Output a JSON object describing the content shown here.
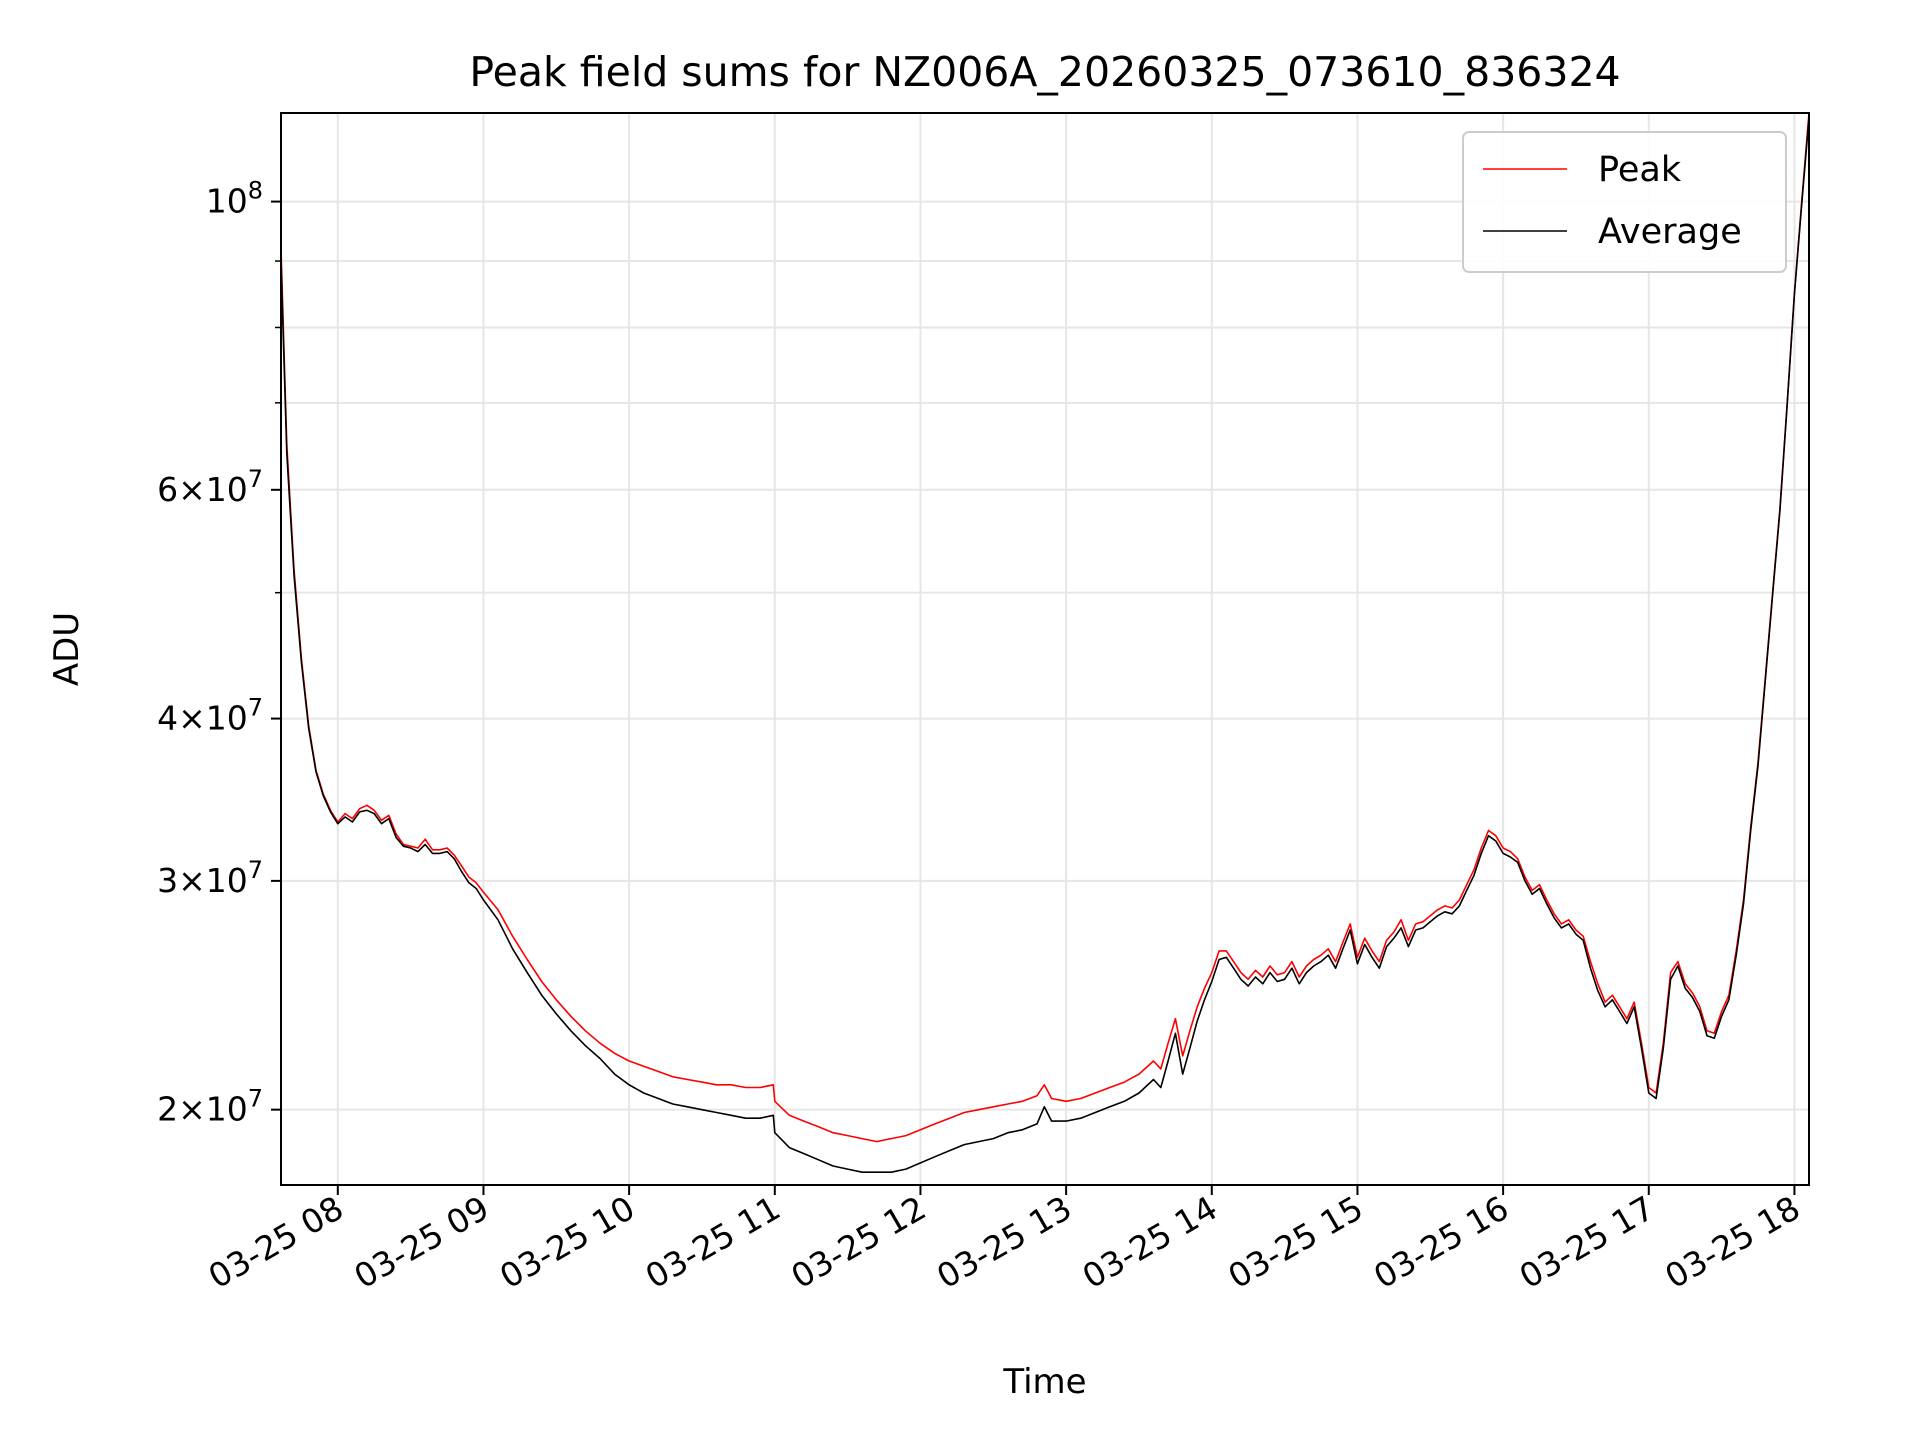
{
  "chart_data": {
    "type": "line",
    "title": "Peak field sums for NZ006A_20260325_073610_836324",
    "xlabel": "Time",
    "ylabel": "ADU",
    "y_scale": "log",
    "ylim": [
      17500000,
      117000000
    ],
    "x_unit": "hours since 2026-03-25 00:00",
    "xlim": [
      7.61,
      18.1
    ],
    "grid": true,
    "legend_position": "top-right",
    "x_ticks": [
      {
        "value": 8,
        "label": "03-25 08"
      },
      {
        "value": 9,
        "label": "03-25 09"
      },
      {
        "value": 10,
        "label": "03-25 10"
      },
      {
        "value": 11,
        "label": "03-25 11"
      },
      {
        "value": 12,
        "label": "03-25 12"
      },
      {
        "value": 13,
        "label": "03-25 13"
      },
      {
        "value": 14,
        "label": "03-25 14"
      },
      {
        "value": 15,
        "label": "03-25 15"
      },
      {
        "value": 16,
        "label": "03-25 16"
      },
      {
        "value": 17,
        "label": "03-25 17"
      },
      {
        "value": 18,
        "label": "03-25 18"
      }
    ],
    "y_major_ticks": [
      {
        "value": 20000000,
        "mantissa": "2",
        "exponent": "7"
      },
      {
        "value": 30000000,
        "mantissa": "3",
        "exponent": "7"
      },
      {
        "value": 40000000,
        "mantissa": "4",
        "exponent": "7"
      },
      {
        "value": 60000000,
        "mantissa": "6",
        "exponent": "7"
      },
      {
        "value": 100000000,
        "mantissa": "",
        "exponent": "8"
      }
    ],
    "y_minor_ticks": [
      50000000,
      70000000,
      80000000,
      90000000
    ],
    "x": [
      7.61,
      7.65,
      7.7,
      7.75,
      7.8,
      7.85,
      7.9,
      7.95,
      8.0,
      8.05,
      8.1,
      8.15,
      8.2,
      8.25,
      8.3,
      8.35,
      8.4,
      8.45,
      8.5,
      8.55,
      8.6,
      8.65,
      8.7,
      8.75,
      8.8,
      8.85,
      8.9,
      8.95,
      9.0,
      9.1,
      9.2,
      9.3,
      9.4,
      9.5,
      9.6,
      9.7,
      9.8,
      9.9,
      10.0,
      10.1,
      10.2,
      10.3,
      10.4,
      10.5,
      10.6,
      10.7,
      10.8,
      10.9,
      10.99,
      11.0,
      11.1,
      11.2,
      11.3,
      11.4,
      11.5,
      11.6,
      11.7,
      11.8,
      11.9,
      12.0,
      12.1,
      12.2,
      12.3,
      12.4,
      12.5,
      12.6,
      12.7,
      12.8,
      12.85,
      12.9,
      13.0,
      13.1,
      13.2,
      13.3,
      13.4,
      13.5,
      13.6,
      13.65,
      13.7,
      13.75,
      13.8,
      13.85,
      13.9,
      13.95,
      14.0,
      14.05,
      14.1,
      14.15,
      14.2,
      14.25,
      14.3,
      14.35,
      14.4,
      14.45,
      14.5,
      14.55,
      14.6,
      14.65,
      14.7,
      14.75,
      14.8,
      14.85,
      14.9,
      14.95,
      15.0,
      15.05,
      15.1,
      15.15,
      15.2,
      15.25,
      15.3,
      15.35,
      15.4,
      15.45,
      15.5,
      15.55,
      15.6,
      15.65,
      15.7,
      15.75,
      15.8,
      15.85,
      15.9,
      15.95,
      16.0,
      16.05,
      16.1,
      16.15,
      16.2,
      16.25,
      16.3,
      16.35,
      16.4,
      16.45,
      16.5,
      16.55,
      16.6,
      16.65,
      16.7,
      16.75,
      16.8,
      16.85,
      16.9,
      16.95,
      17.0,
      17.05,
      17.1,
      17.15,
      17.2,
      17.25,
      17.3,
      17.35,
      17.4,
      17.45,
      17.5,
      17.55,
      17.6,
      17.65,
      17.7,
      17.75,
      17.8,
      17.85,
      17.9,
      17.95,
      18.0,
      18.05,
      18.1
    ],
    "series": [
      {
        "name": "Peak",
        "color": "#ff0000",
        "values": [
          92000000,
          65000000,
          52000000,
          44500000,
          39500000,
          36500000,
          35000000,
          34000000,
          33300000,
          33800000,
          33500000,
          34100000,
          34300000,
          34000000,
          33400000,
          33700000,
          32600000,
          32000000,
          31900000,
          31800000,
          32300000,
          31700000,
          31700000,
          31800000,
          31400000,
          30800000,
          30200000,
          29900000,
          29400000,
          28500000,
          27200000,
          26100000,
          25100000,
          24300000,
          23600000,
          23000000,
          22500000,
          22100000,
          21800000,
          21600000,
          21400000,
          21200000,
          21100000,
          21000000,
          20900000,
          20900000,
          20800000,
          20800000,
          20900000,
          20300000,
          19800000,
          19600000,
          19400000,
          19200000,
          19100000,
          19000000,
          18900000,
          19000000,
          19100000,
          19300000,
          19500000,
          19700000,
          19900000,
          20000000,
          20100000,
          20200000,
          20300000,
          20500000,
          20900000,
          20400000,
          20300000,
          20400000,
          20600000,
          20800000,
          21000000,
          21300000,
          21800000,
          21500000,
          22500000,
          23500000,
          22000000,
          23000000,
          24000000,
          24800000,
          25500000,
          26500000,
          26500000,
          26000000,
          25500000,
          25200000,
          25600000,
          25300000,
          25800000,
          25400000,
          25500000,
          26000000,
          25300000,
          25800000,
          26100000,
          26300000,
          26600000,
          26000000,
          26900000,
          27800000,
          26200000,
          27100000,
          26500000,
          26000000,
          27000000,
          27400000,
          28000000,
          27000000,
          27800000,
          27900000,
          28200000,
          28500000,
          28700000,
          28600000,
          29000000,
          29800000,
          30600000,
          31800000,
          32800000,
          32500000,
          31800000,
          31600000,
          31200000,
          30200000,
          29500000,
          29800000,
          29000000,
          28300000,
          27800000,
          28000000,
          27500000,
          27200000,
          26000000,
          25000000,
          24200000,
          24500000,
          24000000,
          23500000,
          24200000,
          22500000,
          20800000,
          20600000,
          22500000,
          25500000,
          26000000,
          25000000,
          24600000,
          24000000,
          23000000,
          22900000,
          23800000,
          24500000,
          26500000,
          29000000,
          33000000,
          37000000,
          43000000,
          50000000,
          58000000,
          70000000,
          85000000,
          100000000,
          117000000
        ]
      },
      {
        "name": "Average",
        "color": "#000000",
        "values": [
          90000000,
          64000000,
          51500000,
          44200000,
          39300000,
          36400000,
          34900000,
          33900000,
          33200000,
          33600000,
          33300000,
          33900000,
          34000000,
          33800000,
          33200000,
          33500000,
          32400000,
          31900000,
          31800000,
          31600000,
          32000000,
          31500000,
          31500000,
          31600000,
          31200000,
          30500000,
          29900000,
          29600000,
          29000000,
          28000000,
          26600000,
          25500000,
          24500000,
          23700000,
          23000000,
          22400000,
          21900000,
          21300000,
          20900000,
          20600000,
          20400000,
          20200000,
          20100000,
          20000000,
          19900000,
          19800000,
          19700000,
          19700000,
          19800000,
          19200000,
          18700000,
          18500000,
          18300000,
          18100000,
          18000000,
          17900000,
          17900000,
          17900000,
          18000000,
          18200000,
          18400000,
          18600000,
          18800000,
          18900000,
          19000000,
          19200000,
          19300000,
          19500000,
          20100000,
          19600000,
          19600000,
          19700000,
          19900000,
          20100000,
          20300000,
          20600000,
          21100000,
          20800000,
          21800000,
          22900000,
          21300000,
          22300000,
          23400000,
          24300000,
          25100000,
          26100000,
          26200000,
          25700000,
          25200000,
          24900000,
          25300000,
          25000000,
          25500000,
          25100000,
          25200000,
          25700000,
          25000000,
          25500000,
          25800000,
          26000000,
          26300000,
          25700000,
          26600000,
          27500000,
          25900000,
          26800000,
          26200000,
          25700000,
          26700000,
          27100000,
          27600000,
          26700000,
          27500000,
          27600000,
          27900000,
          28200000,
          28400000,
          28300000,
          28700000,
          29500000,
          30300000,
          31500000,
          32500000,
          32200000,
          31500000,
          31300000,
          31000000,
          30000000,
          29300000,
          29600000,
          28800000,
          28100000,
          27600000,
          27800000,
          27300000,
          27000000,
          25700000,
          24700000,
          24000000,
          24300000,
          23800000,
          23300000,
          24000000,
          22300000,
          20600000,
          20400000,
          22300000,
          25200000,
          25800000,
          24800000,
          24400000,
          23800000,
          22800000,
          22700000,
          23600000,
          24300000,
          26300000,
          28800000,
          32800000,
          36800000,
          42800000,
          49800000,
          57800000,
          69800000,
          84800000,
          99500000,
          116000000
        ]
      }
    ]
  }
}
